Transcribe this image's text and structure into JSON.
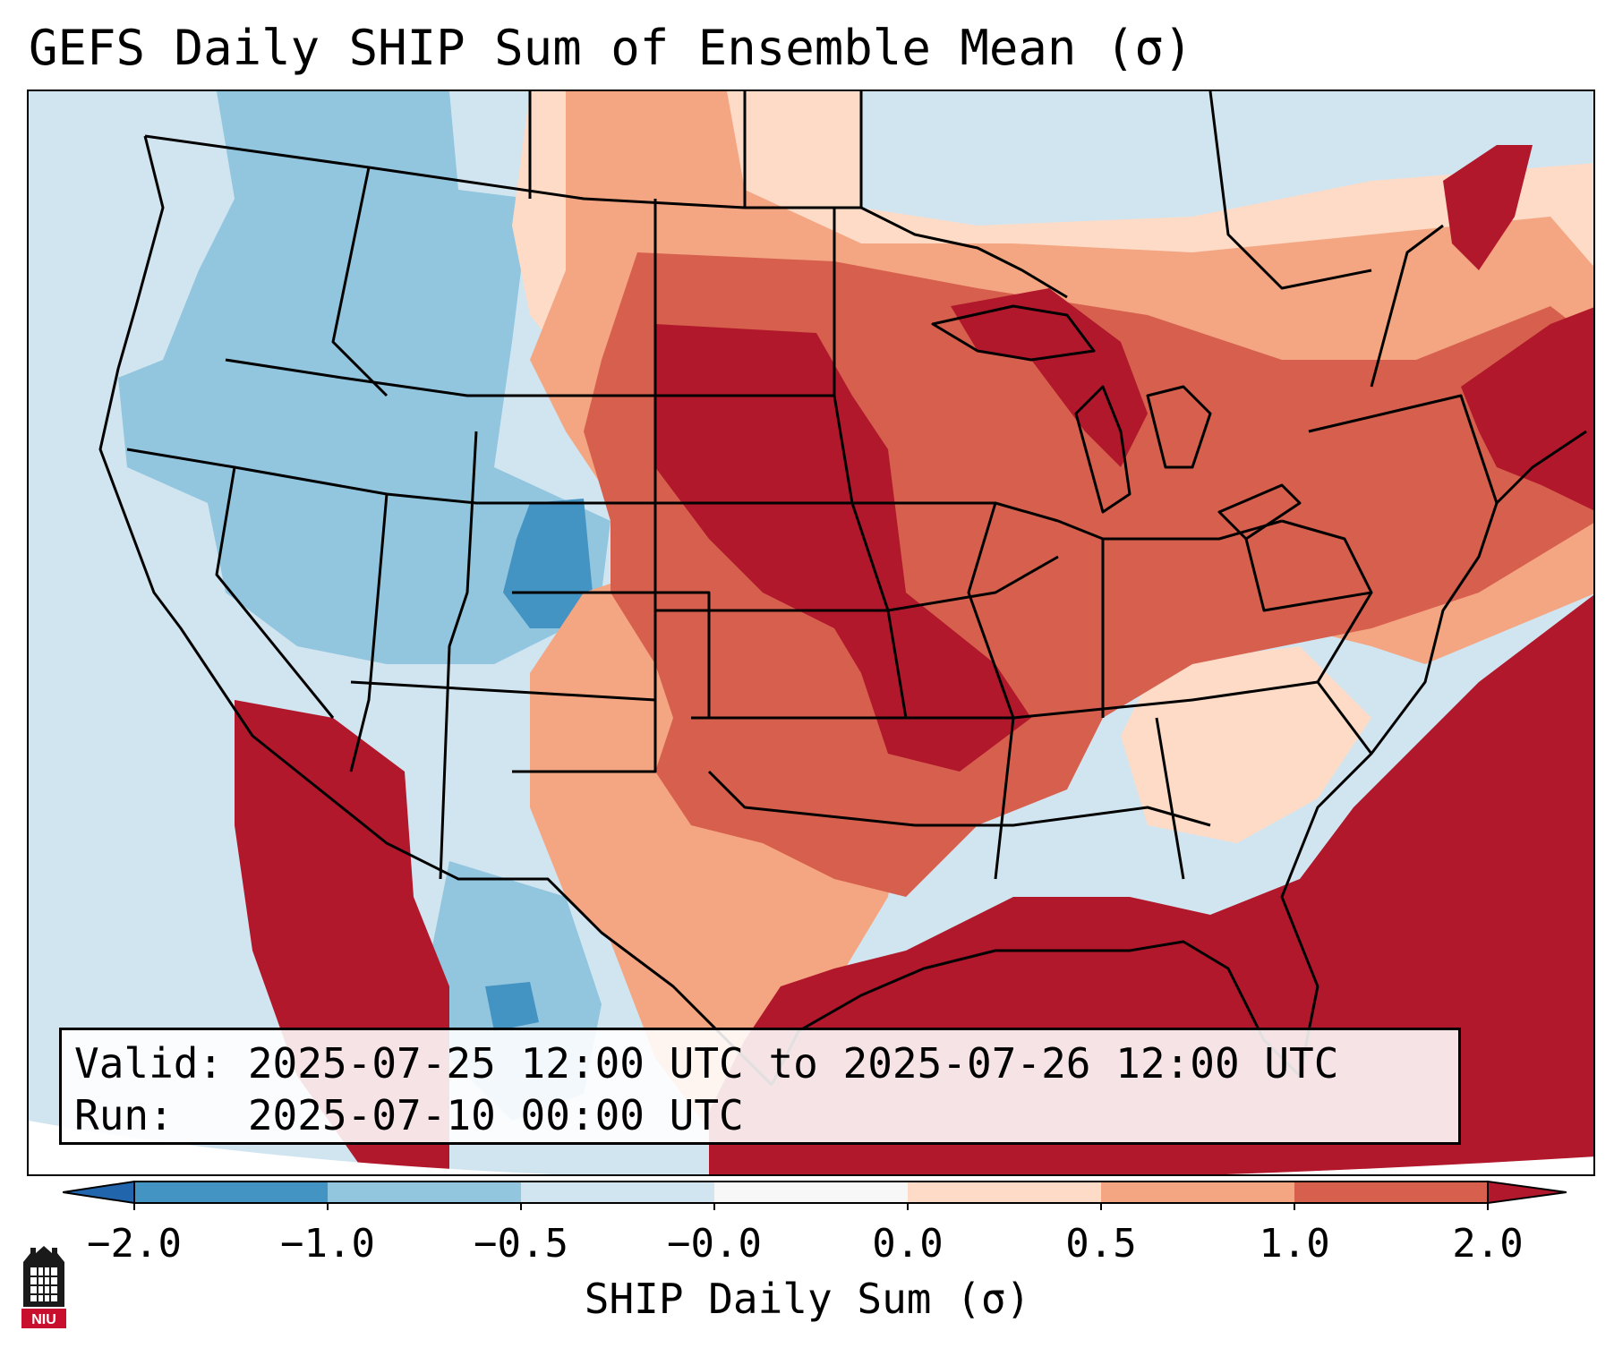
{
  "title": "GEFS Daily SHIP Sum of Ensemble Mean (σ)",
  "info": {
    "valid_line": "Valid: 2025-07-25 12:00 UTC to 2025-07-26 12:00 UTC",
    "run_line": "Run:   2025-07-10 00:00 UTC"
  },
  "colorbar": {
    "label": "SHIP Daily Sum (σ)",
    "ticks": [
      "−2.0",
      "−1.0",
      "−0.5",
      "−0.0",
      "0.0",
      "0.5",
      "1.0",
      "2.0"
    ],
    "colors": {
      "below_min": "#2166ac",
      "bin_neg2_neg1": "#4393c3",
      "bin_neg1_neg05": "#92c5de",
      "bin_neg05_0": "#d1e5f0",
      "bin_0_0": "#f7f7f7",
      "bin_0_05": "#fddbc7",
      "bin_05_1": "#f4a582",
      "bin_1_2": "#d6604d",
      "above_max": "#b2182b"
    }
  },
  "legend_text": {
    "logo": "NIU"
  }
}
